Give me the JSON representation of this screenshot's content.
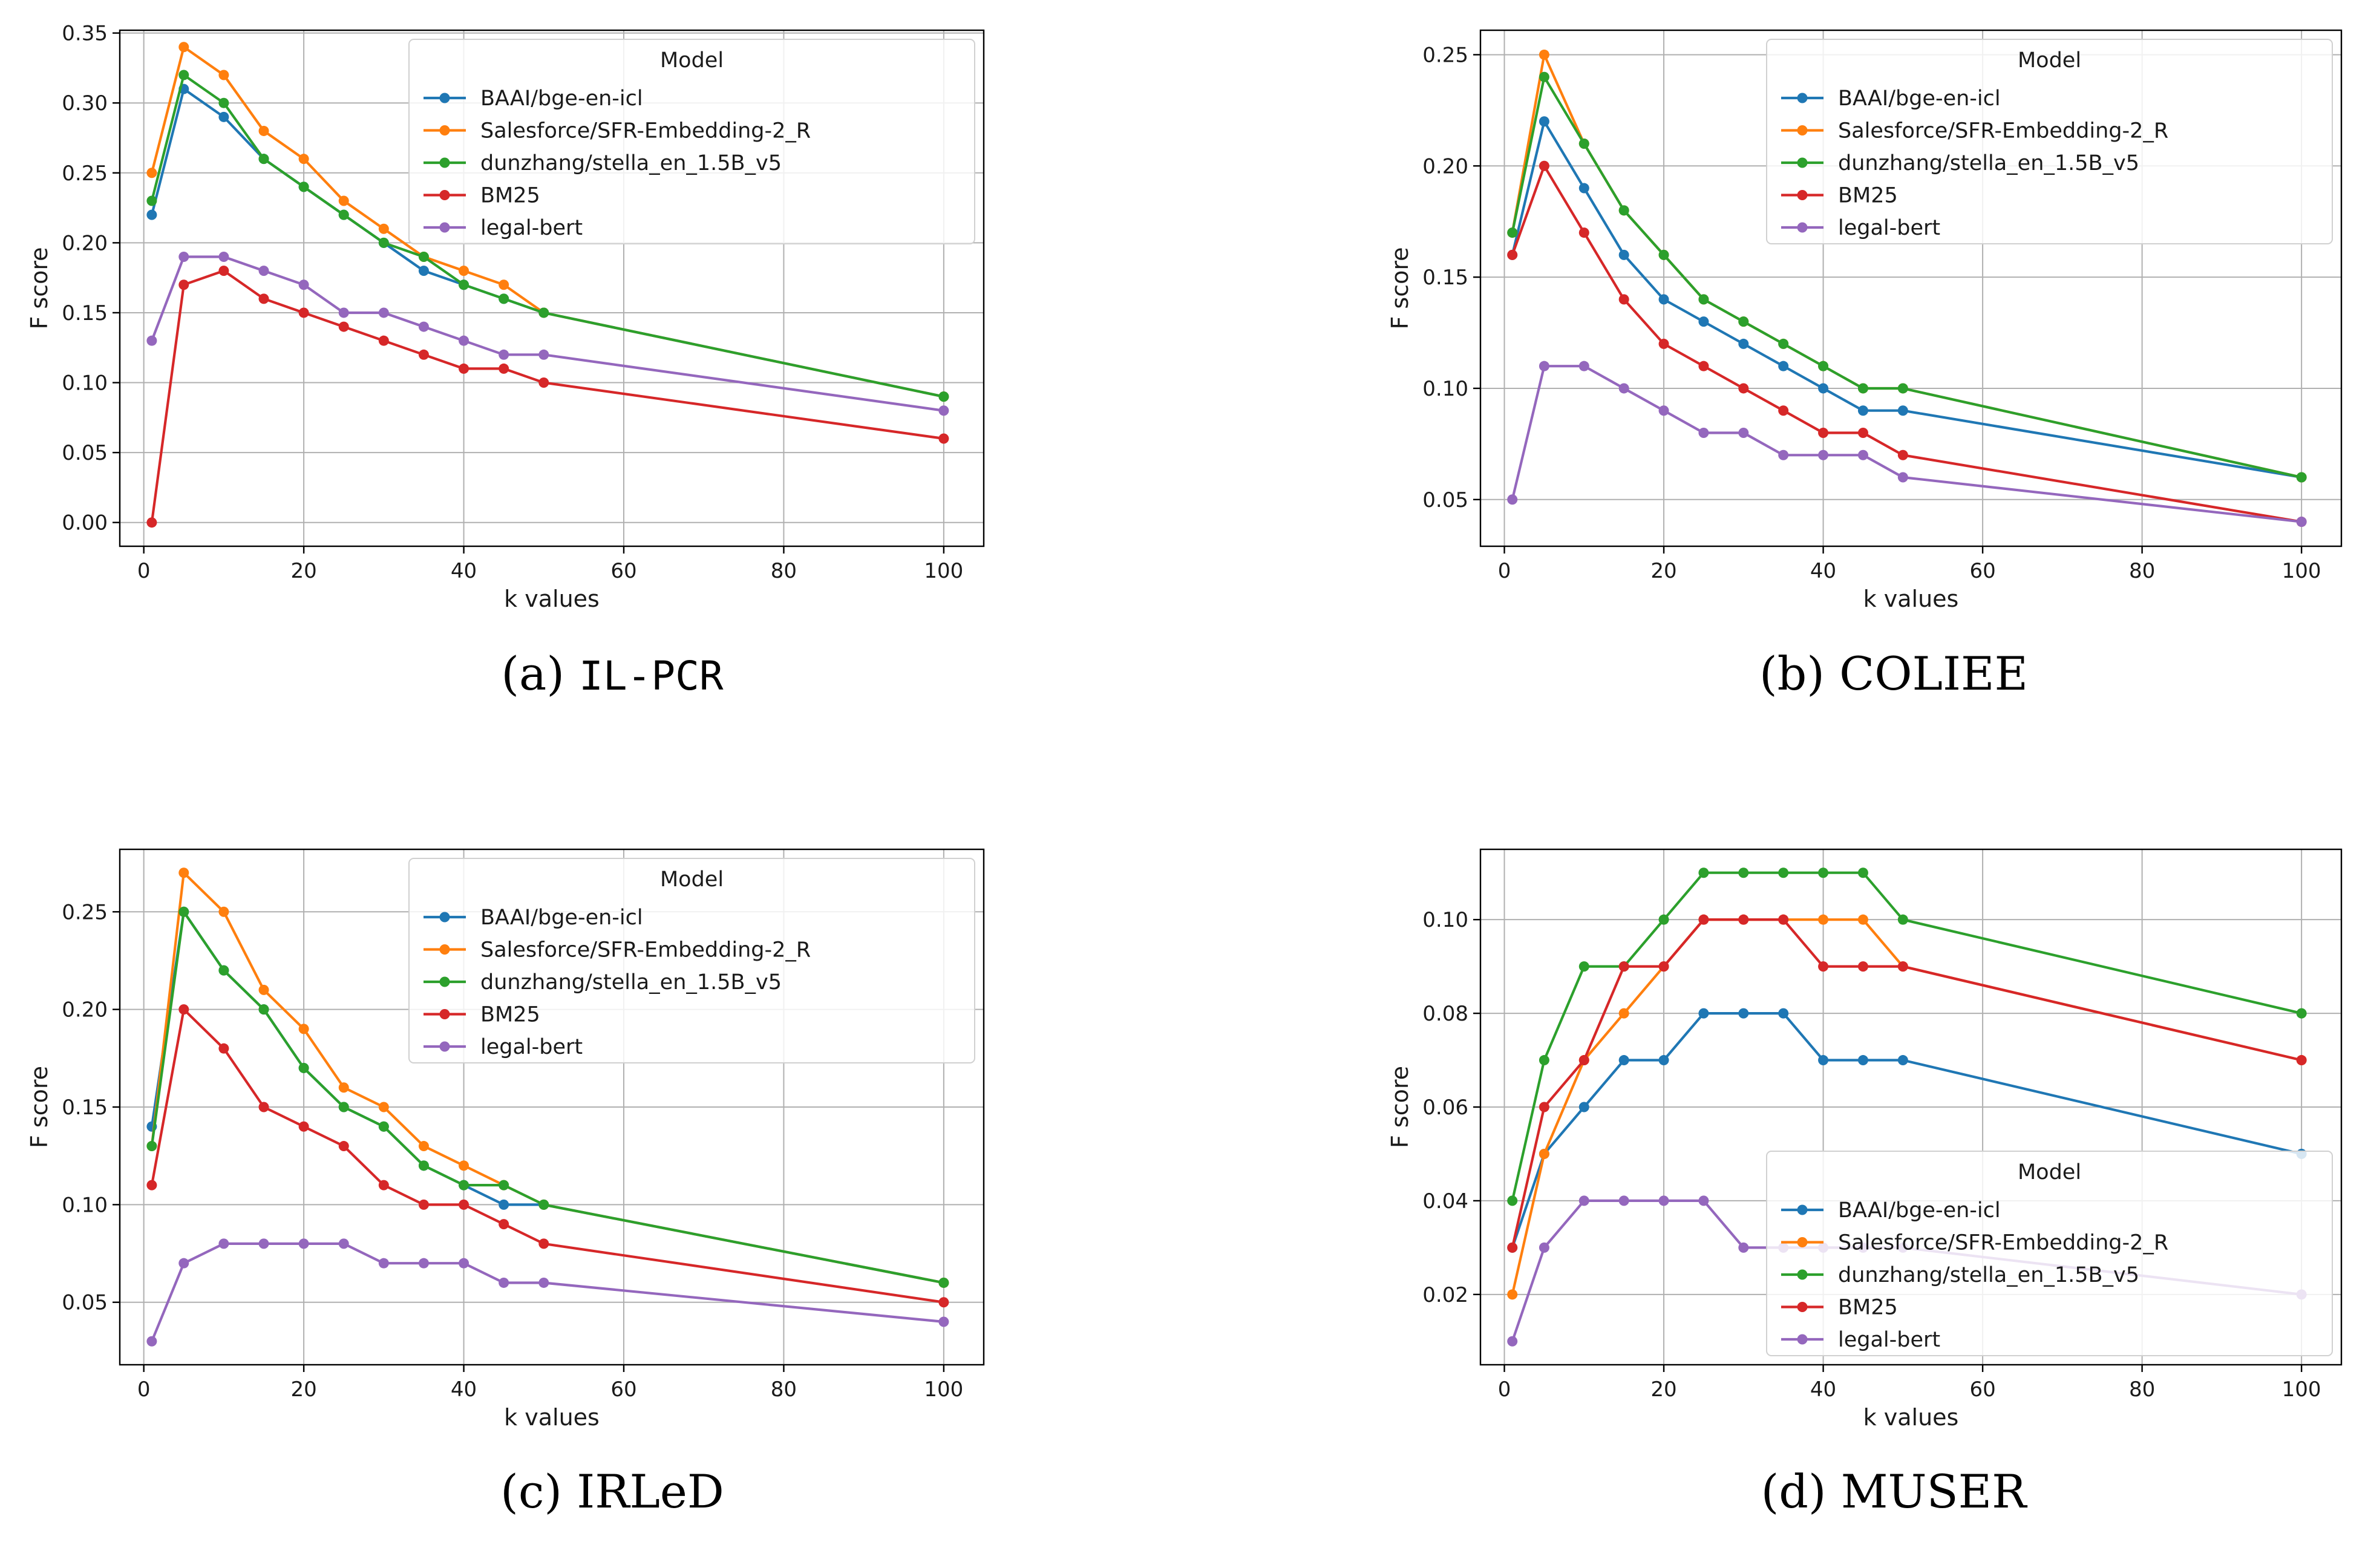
{
  "figure": {
    "model_colors": {
      "BAAI/bge-en-icl": "#1f77b4",
      "Salesforce/SFR-Embedding-2_R": "#ff7f0e",
      "dunzhang/stella_en_1.5B_v5": "#2ca02c",
      "BM25": "#d62728",
      "legal-bert": "#9467bd"
    }
  },
  "chart_data": [
    {
      "id": "a",
      "type": "line",
      "caption_prefix": "(a) ",
      "caption_name": "IL-PCR",
      "caption_mono": true,
      "xlabel": "k values",
      "ylabel": "F score",
      "xlim": [
        -3,
        105
      ],
      "ylim": [
        -0.017,
        0.352
      ],
      "xticks": [
        0,
        20,
        40,
        60,
        80,
        100
      ],
      "yticks": [
        0.0,
        0.05,
        0.1,
        0.15,
        0.2,
        0.25,
        0.3,
        0.35
      ],
      "ytick_decimals": 2,
      "grid": true,
      "legend_title": "Model",
      "legend_position": "upper right",
      "x": [
        1,
        5,
        10,
        15,
        20,
        25,
        30,
        35,
        40,
        45,
        50,
        100
      ],
      "series": [
        {
          "name": "BAAI/bge-en-icl",
          "values": [
            0.22,
            0.31,
            0.29,
            0.26,
            0.24,
            0.22,
            0.2,
            0.18,
            0.17,
            0.16,
            0.15,
            0.09
          ]
        },
        {
          "name": "Salesforce/SFR-Embedding-2_R",
          "values": [
            0.25,
            0.34,
            0.32,
            0.28,
            0.26,
            0.23,
            0.21,
            0.19,
            0.18,
            0.17,
            0.15,
            0.09
          ]
        },
        {
          "name": "dunzhang/stella_en_1.5B_v5",
          "values": [
            0.23,
            0.32,
            0.3,
            0.26,
            0.24,
            0.22,
            0.2,
            0.19,
            0.17,
            0.16,
            0.15,
            0.09
          ]
        },
        {
          "name": "BM25",
          "values": [
            0.0,
            0.17,
            0.18,
            0.16,
            0.15,
            0.14,
            0.13,
            0.12,
            0.11,
            0.11,
            0.1,
            0.06
          ]
        },
        {
          "name": "legal-bert",
          "values": [
            0.13,
            0.19,
            0.19,
            0.18,
            0.17,
            0.15,
            0.15,
            0.14,
            0.13,
            0.12,
            0.12,
            0.08
          ]
        }
      ]
    },
    {
      "id": "b",
      "type": "line",
      "caption_prefix": "(b) ",
      "caption_name": "COLIEE",
      "caption_mono": false,
      "xlabel": "k values",
      "ylabel": "F score",
      "xlim": [
        -3,
        105
      ],
      "ylim": [
        0.029,
        0.261
      ],
      "xticks": [
        0,
        20,
        40,
        60,
        80,
        100
      ],
      "yticks": [
        0.05,
        0.1,
        0.15,
        0.2,
        0.25
      ],
      "ytick_decimals": 2,
      "grid": true,
      "legend_title": "Model",
      "legend_position": "upper right",
      "x": [
        1,
        5,
        10,
        15,
        20,
        25,
        30,
        35,
        40,
        45,
        50,
        100
      ],
      "series": [
        {
          "name": "BAAI/bge-en-icl",
          "values": [
            0.16,
            0.22,
            0.19,
            0.16,
            0.14,
            0.13,
            0.12,
            0.11,
            0.1,
            0.09,
            0.09,
            0.06
          ]
        },
        {
          "name": "Salesforce/SFR-Embedding-2_R",
          "values": [
            0.17,
            0.25,
            0.21,
            0.18,
            0.16,
            0.14,
            0.13,
            0.12,
            0.11,
            0.1,
            0.1,
            0.06
          ]
        },
        {
          "name": "dunzhang/stella_en_1.5B_v5",
          "values": [
            0.17,
            0.24,
            0.21,
            0.18,
            0.16,
            0.14,
            0.13,
            0.12,
            0.11,
            0.1,
            0.1,
            0.06
          ]
        },
        {
          "name": "BM25",
          "values": [
            0.16,
            0.2,
            0.17,
            0.14,
            0.12,
            0.11,
            0.1,
            0.09,
            0.08,
            0.08,
            0.07,
            0.04
          ]
        },
        {
          "name": "legal-bert",
          "values": [
            0.05,
            0.11,
            0.11,
            0.1,
            0.09,
            0.08,
            0.08,
            0.07,
            0.07,
            0.07,
            0.06,
            0.04
          ]
        }
      ]
    },
    {
      "id": "c",
      "type": "line",
      "caption_prefix": "(c) ",
      "caption_name": "IRLeD",
      "caption_mono": false,
      "xlabel": "k values",
      "ylabel": "F score",
      "xlim": [
        -3,
        105
      ],
      "ylim": [
        0.018,
        0.282
      ],
      "xticks": [
        0,
        20,
        40,
        60,
        80,
        100
      ],
      "yticks": [
        0.05,
        0.1,
        0.15,
        0.2,
        0.25
      ],
      "ytick_decimals": 2,
      "grid": true,
      "legend_title": "Model",
      "legend_position": "upper right",
      "x": [
        1,
        5,
        10,
        15,
        20,
        25,
        30,
        35,
        40,
        45,
        50,
        100
      ],
      "series": [
        {
          "name": "BAAI/bge-en-icl",
          "values": [
            0.14,
            0.25,
            0.22,
            0.2,
            0.17,
            0.15,
            0.14,
            0.12,
            0.11,
            0.1,
            0.1,
            0.06
          ]
        },
        {
          "name": "Salesforce/SFR-Embedding-2_R",
          "values": [
            0.13,
            0.27,
            0.25,
            0.21,
            0.19,
            0.16,
            0.15,
            0.13,
            0.12,
            0.11,
            0.1,
            0.06
          ]
        },
        {
          "name": "dunzhang/stella_en_1.5B_v5",
          "values": [
            0.13,
            0.25,
            0.22,
            0.2,
            0.17,
            0.15,
            0.14,
            0.12,
            0.11,
            0.11,
            0.1,
            0.06
          ]
        },
        {
          "name": "BM25",
          "values": [
            0.11,
            0.2,
            0.18,
            0.15,
            0.14,
            0.13,
            0.11,
            0.1,
            0.1,
            0.09,
            0.08,
            0.05
          ]
        },
        {
          "name": "legal-bert",
          "values": [
            0.03,
            0.07,
            0.08,
            0.08,
            0.08,
            0.08,
            0.07,
            0.07,
            0.07,
            0.06,
            0.06,
            0.04
          ]
        }
      ]
    },
    {
      "id": "d",
      "type": "line",
      "caption_prefix": "(d) ",
      "caption_name": "MUSER",
      "caption_mono": false,
      "xlabel": "k values",
      "ylabel": "F score",
      "xlim": [
        -3,
        105
      ],
      "ylim": [
        0.005,
        0.115
      ],
      "xticks": [
        0,
        20,
        40,
        60,
        80,
        100
      ],
      "yticks": [
        0.02,
        0.04,
        0.06,
        0.08,
        0.1
      ],
      "ytick_decimals": 2,
      "grid": true,
      "legend_title": "Model",
      "legend_position": "lower right",
      "x": [
        1,
        5,
        10,
        15,
        20,
        25,
        30,
        35,
        40,
        45,
        50,
        100
      ],
      "series": [
        {
          "name": "BAAI/bge-en-icl",
          "values": [
            0.03,
            0.05,
            0.06,
            0.07,
            0.07,
            0.08,
            0.08,
            0.08,
            0.07,
            0.07,
            0.07,
            0.05
          ]
        },
        {
          "name": "Salesforce/SFR-Embedding-2_R",
          "values": [
            0.02,
            0.05,
            0.07,
            0.08,
            0.09,
            0.1,
            0.1,
            0.1,
            0.1,
            0.1,
            0.09,
            0.07
          ]
        },
        {
          "name": "dunzhang/stella_en_1.5B_v5",
          "values": [
            0.04,
            0.07,
            0.09,
            0.09,
            0.1,
            0.11,
            0.11,
            0.11,
            0.11,
            0.11,
            0.1,
            0.08
          ]
        },
        {
          "name": "BM25",
          "values": [
            0.03,
            0.06,
            0.07,
            0.09,
            0.09,
            0.1,
            0.1,
            0.1,
            0.09,
            0.09,
            0.09,
            0.07
          ]
        },
        {
          "name": "legal-bert",
          "values": [
            0.01,
            0.03,
            0.04,
            0.04,
            0.04,
            0.04,
            0.03,
            0.03,
            0.03,
            0.03,
            0.03,
            0.02
          ]
        }
      ]
    }
  ]
}
